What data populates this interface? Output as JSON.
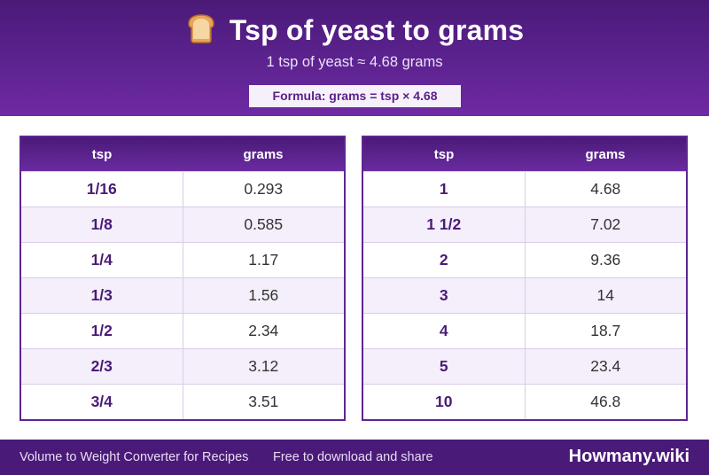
{
  "header": {
    "icon": "bread-icon",
    "title": "Tsp of yeast to grams",
    "subtitle": "1 tsp of yeast ≈ 4.68 grams",
    "formula": "Formula: grams = tsp × 4.68"
  },
  "tables": [
    {
      "columns": [
        "tsp",
        "grams"
      ],
      "rows": [
        {
          "tsp": "1/16",
          "grams": "0.293"
        },
        {
          "tsp": "1/8",
          "grams": "0.585"
        },
        {
          "tsp": "1/4",
          "grams": "1.17"
        },
        {
          "tsp": "1/3",
          "grams": "1.56"
        },
        {
          "tsp": "1/2",
          "grams": "2.34"
        },
        {
          "tsp": "2/3",
          "grams": "3.12"
        },
        {
          "tsp": "3/4",
          "grams": "3.51"
        }
      ]
    },
    {
      "columns": [
        "tsp",
        "grams"
      ],
      "rows": [
        {
          "tsp": "1",
          "grams": "4.68"
        },
        {
          "tsp": "1 1/2",
          "grams": "7.02"
        },
        {
          "tsp": "2",
          "grams": "9.36"
        },
        {
          "tsp": "3",
          "grams": "14"
        },
        {
          "tsp": "4",
          "grams": "18.7"
        },
        {
          "tsp": "5",
          "grams": "23.4"
        },
        {
          "tsp": "10",
          "grams": "46.8"
        }
      ]
    }
  ],
  "footer": {
    "left": "Volume to Weight Converter for Recipes",
    "middle": "Free to download and share",
    "brand": "Howmany.wiki"
  },
  "colors": {
    "accent": "#5d2390",
    "header_dark": "#4a1a78",
    "row_alt": "#f4effa"
  }
}
